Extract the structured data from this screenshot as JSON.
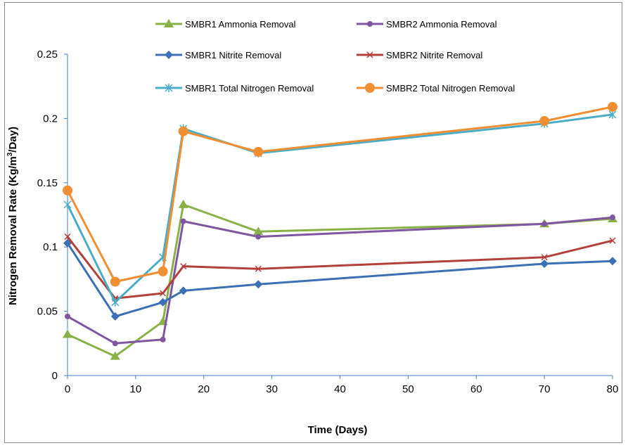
{
  "chart_data": {
    "type": "line",
    "title": "",
    "xlabel": "Time (Days)",
    "ylabel": "Nitrogen Removal Rate (Kg/m",
    "ylabel_sup": "3",
    "ylabel_suffix": "/Day)",
    "xlim": [
      0,
      80
    ],
    "ylim": [
      0,
      0.25
    ],
    "xticks": [
      0,
      10,
      20,
      30,
      40,
      50,
      60,
      70,
      80
    ],
    "yticks": [
      0,
      0.05,
      0.1,
      0.15,
      0.2,
      0.25
    ],
    "xtick_labels": [
      "0",
      "10",
      "20",
      "30",
      "40",
      "50",
      "60",
      "70",
      "80"
    ],
    "ytick_labels": [
      "0",
      "0.05",
      "0.1",
      "0.15",
      "0.2",
      "0.25"
    ],
    "grid": false,
    "legend_position": "top",
    "x": [
      0,
      7,
      14,
      17,
      28,
      70,
      80
    ],
    "series": [
      {
        "name": "SMBR1 Ammonia Removal",
        "color": "#8AB048",
        "marker": "triangle",
        "values": [
          0.032,
          0.015,
          0.042,
          0.133,
          0.112,
          0.118,
          0.122
        ]
      },
      {
        "name": "SMBR2 Ammonia Removal",
        "color": "#7E57A0",
        "marker": "circle-small",
        "values": [
          0.046,
          0.025,
          0.028,
          0.12,
          0.108,
          0.118,
          0.123
        ]
      },
      {
        "name": "SMBR1 Nitrite Removal",
        "color": "#3D6FB5",
        "marker": "diamond",
        "values": [
          0.103,
          0.046,
          0.057,
          0.066,
          0.071,
          0.087,
          0.089
        ]
      },
      {
        "name": "SMBR2 Nitrite Removal",
        "color": "#B2413C",
        "marker": "x",
        "values": [
          0.108,
          0.06,
          0.064,
          0.085,
          0.083,
          0.092,
          0.105
        ]
      },
      {
        "name": "SMBR1 Total Nitrogen Removal",
        "color": "#4BACC6",
        "marker": "star",
        "values": [
          0.133,
          0.057,
          0.092,
          0.192,
          0.173,
          0.196,
          0.203
        ]
      },
      {
        "name": "SMBR2 Total Nitrogen Removal",
        "color": "#F08E33",
        "marker": "circle-large",
        "values": [
          0.144,
          0.073,
          0.081,
          0.19,
          0.174,
          0.198,
          0.209
        ]
      }
    ]
  }
}
